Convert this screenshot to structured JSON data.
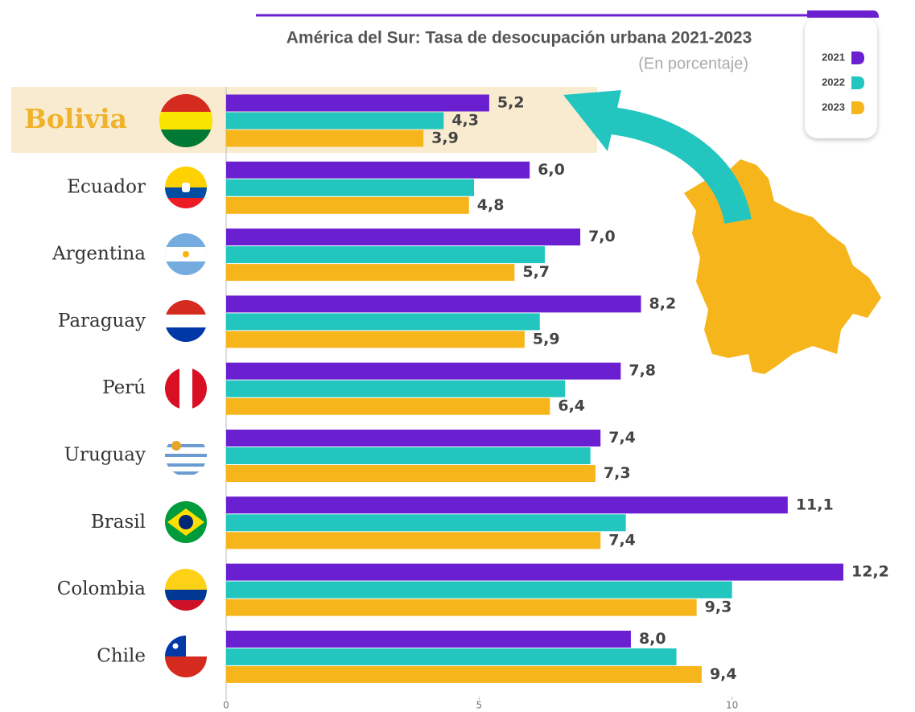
{
  "chart_data": {
    "type": "bar",
    "orientation": "horizontal",
    "title": "América del Sur: Tasa de desocupación urbana 2021-2023",
    "subtitle": "(En porcentaje)",
    "categories": [
      "Bolivia",
      "Ecuador",
      "Argentina",
      "Paraguay",
      "Perú",
      "Uruguay",
      "Brasil",
      "Colombia",
      "Chile"
    ],
    "highlight": "Bolivia",
    "series": [
      {
        "name": "2021",
        "color": "#6a1fd1",
        "values": [
          5.2,
          6.0,
          7.0,
          8.2,
          7.8,
          7.4,
          11.1,
          12.2,
          8.0
        ],
        "value_labels": [
          "5,2",
          "6,0",
          "7,0",
          "8,2",
          "7,8",
          "7,4",
          "11,1",
          "12,2",
          "8,0"
        ]
      },
      {
        "name": "2022",
        "color": "#22c6be",
        "values": [
          4.3,
          4.9,
          6.3,
          6.2,
          6.7,
          7.2,
          7.9,
          10.0,
          8.9
        ],
        "value_labels": [
          "4,3",
          null,
          null,
          null,
          null,
          null,
          null,
          null,
          null
        ]
      },
      {
        "name": "2023",
        "color": "#f7b51c",
        "values": [
          3.9,
          4.8,
          5.7,
          5.9,
          6.4,
          7.3,
          7.4,
          9.3,
          9.4
        ],
        "value_labels": [
          "3,9",
          "4,8",
          "5,7",
          "5,9",
          "6,4",
          "7,3",
          "7,4",
          "9,3",
          "9,4"
        ]
      }
    ],
    "xlim": [
      0,
      13.6
    ],
    "xticks": [
      0,
      5,
      10
    ]
  }
}
